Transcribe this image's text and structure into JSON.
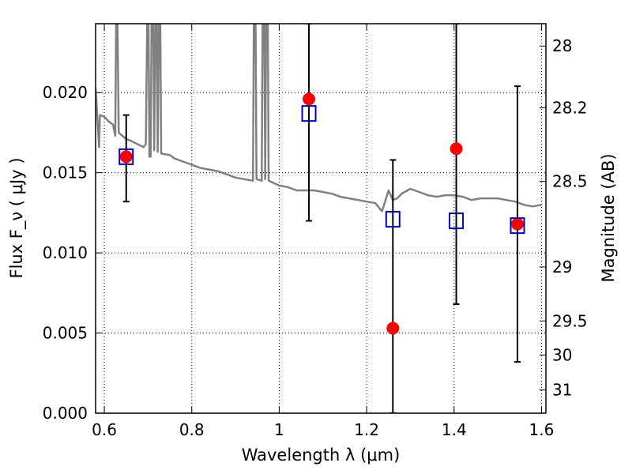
{
  "chart_data": {
    "type": "scatter",
    "xlabel": "Wavelength  λ (μm)",
    "ylabel": "Flux  F_ν  ( μJy )",
    "y2label": "Magnitude (AB)",
    "xlim": [
      0.58,
      1.61
    ],
    "ylim": [
      0.0,
      0.0243
    ],
    "grid": true,
    "x_ticks": [
      {
        "value": 0.6,
        "label": "0.6"
      },
      {
        "value": 0.8,
        "label": "0.8"
      },
      {
        "value": 1.0,
        "label": "1"
      },
      {
        "value": 1.2,
        "label": "1.2"
      },
      {
        "value": 1.4,
        "label": "1.4"
      },
      {
        "value": 1.6,
        "label": "1.6"
      }
    ],
    "y_ticks": [
      {
        "value": 0.0,
        "label": "0.000"
      },
      {
        "value": 0.005,
        "label": "0.005"
      },
      {
        "value": 0.01,
        "label": "0.010"
      },
      {
        "value": 0.015,
        "label": "0.015"
      },
      {
        "value": 0.02,
        "label": "0.020"
      }
    ],
    "mag_ticks": [
      {
        "mag": 28,
        "label": "28"
      },
      {
        "mag": 28.2,
        "label": "28.2"
      },
      {
        "mag": 28.5,
        "label": "28.5"
      },
      {
        "mag": 29,
        "label": "29"
      },
      {
        "mag": 29.5,
        "label": "29.5"
      },
      {
        "mag": 30,
        "label": "30"
      },
      {
        "mag": 31,
        "label": "31"
      }
    ],
    "series": [
      {
        "kind": "line",
        "color": "#808080",
        "points": [
          [
            0.58,
            0.0203
          ],
          [
            0.585,
            0.018
          ],
          [
            0.588,
            0.0166
          ],
          [
            0.59,
            0.0186
          ],
          [
            0.6,
            0.0185
          ],
          [
            0.61,
            0.0182
          ],
          [
            0.62,
            0.018
          ],
          [
            0.625,
            0.0173
          ],
          [
            0.627,
            0.0243
          ],
          [
            0.63,
            0.0243
          ],
          [
            0.633,
            0.0175
          ],
          [
            0.65,
            0.0171
          ],
          [
            0.66,
            0.017
          ],
          [
            0.675,
            0.0168
          ],
          [
            0.69,
            0.0166
          ],
          [
            0.695,
            0.0168
          ],
          [
            0.698,
            0.0243
          ],
          [
            0.701,
            0.0243
          ],
          [
            0.703,
            0.016
          ],
          [
            0.706,
            0.016
          ],
          [
            0.708,
            0.0243
          ],
          [
            0.712,
            0.0243
          ],
          [
            0.714,
            0.0164
          ],
          [
            0.717,
            0.0243
          ],
          [
            0.72,
            0.0243
          ],
          [
            0.722,
            0.0163
          ],
          [
            0.725,
            0.0243
          ],
          [
            0.728,
            0.0243
          ],
          [
            0.73,
            0.0162
          ],
          [
            0.75,
            0.0161
          ],
          [
            0.76,
            0.0159
          ],
          [
            0.78,
            0.0157
          ],
          [
            0.8,
            0.0155
          ],
          [
            0.82,
            0.0153
          ],
          [
            0.84,
            0.0152
          ],
          [
            0.86,
            0.0151
          ],
          [
            0.88,
            0.0149
          ],
          [
            0.9,
            0.0147
          ],
          [
            0.92,
            0.0146
          ],
          [
            0.94,
            0.0145
          ],
          [
            0.942,
            0.0243
          ],
          [
            0.946,
            0.0243
          ],
          [
            0.948,
            0.0146
          ],
          [
            0.96,
            0.0145
          ],
          [
            0.962,
            0.0243
          ],
          [
            0.966,
            0.0243
          ],
          [
            0.968,
            0.0146
          ],
          [
            0.97,
            0.0243
          ],
          [
            0.974,
            0.0243
          ],
          [
            0.976,
            0.0145
          ],
          [
            1.0,
            0.0142
          ],
          [
            1.02,
            0.0141
          ],
          [
            1.04,
            0.0139
          ],
          [
            1.06,
            0.0139
          ],
          [
            1.08,
            0.0139
          ],
          [
            1.1,
            0.0138
          ],
          [
            1.12,
            0.0137
          ],
          [
            1.14,
            0.0135
          ],
          [
            1.16,
            0.0134
          ],
          [
            1.18,
            0.0133
          ],
          [
            1.2,
            0.0132
          ],
          [
            1.22,
            0.0131
          ],
          [
            1.235,
            0.0126
          ],
          [
            1.24,
            0.013
          ],
          [
            1.25,
            0.0139
          ],
          [
            1.26,
            0.0133
          ],
          [
            1.27,
            0.0134
          ],
          [
            1.28,
            0.0137
          ],
          [
            1.3,
            0.014
          ],
          [
            1.32,
            0.0138
          ],
          [
            1.34,
            0.0136
          ],
          [
            1.36,
            0.0135
          ],
          [
            1.38,
            0.0136
          ],
          [
            1.4,
            0.0136
          ],
          [
            1.42,
            0.0135
          ],
          [
            1.44,
            0.0133
          ],
          [
            1.46,
            0.0134
          ],
          [
            1.48,
            0.0134
          ],
          [
            1.5,
            0.0134
          ],
          [
            1.52,
            0.0133
          ],
          [
            1.54,
            0.0132
          ],
          [
            1.56,
            0.013
          ],
          [
            1.58,
            0.0129
          ],
          [
            1.6,
            0.013
          ]
        ]
      },
      {
        "kind": "errorbar",
        "color": "#000000",
        "points": [
          {
            "x": 0.65,
            "y": 0.016,
            "low": 0.0132,
            "high": 0.0186
          },
          {
            "x": 1.068,
            "y": 0.0196,
            "low": 0.012,
            "high": 0.0243
          },
          {
            "x": 1.26,
            "y": 0.0053,
            "low": 0.0,
            "high": 0.0158
          },
          {
            "x": 1.405,
            "y": 0.0165,
            "low": 0.0068,
            "high": 0.0243
          },
          {
            "x": 1.545,
            "y": 0.0118,
            "low": 0.0032,
            "high": 0.0204
          }
        ]
      },
      {
        "kind": "markers",
        "marker": "circle",
        "color": "#ff0000",
        "points": [
          [
            0.65,
            0.016
          ],
          [
            1.068,
            0.0196
          ],
          [
            1.26,
            0.0053
          ],
          [
            1.405,
            0.0165
          ],
          [
            1.545,
            0.0118
          ]
        ]
      },
      {
        "kind": "markers",
        "marker": "square",
        "color": "#0000cc",
        "points": [
          [
            0.65,
            0.016
          ],
          [
            1.068,
            0.0187
          ],
          [
            1.26,
            0.0121
          ],
          [
            1.405,
            0.012
          ],
          [
            1.545,
            0.0117
          ]
        ]
      }
    ]
  }
}
